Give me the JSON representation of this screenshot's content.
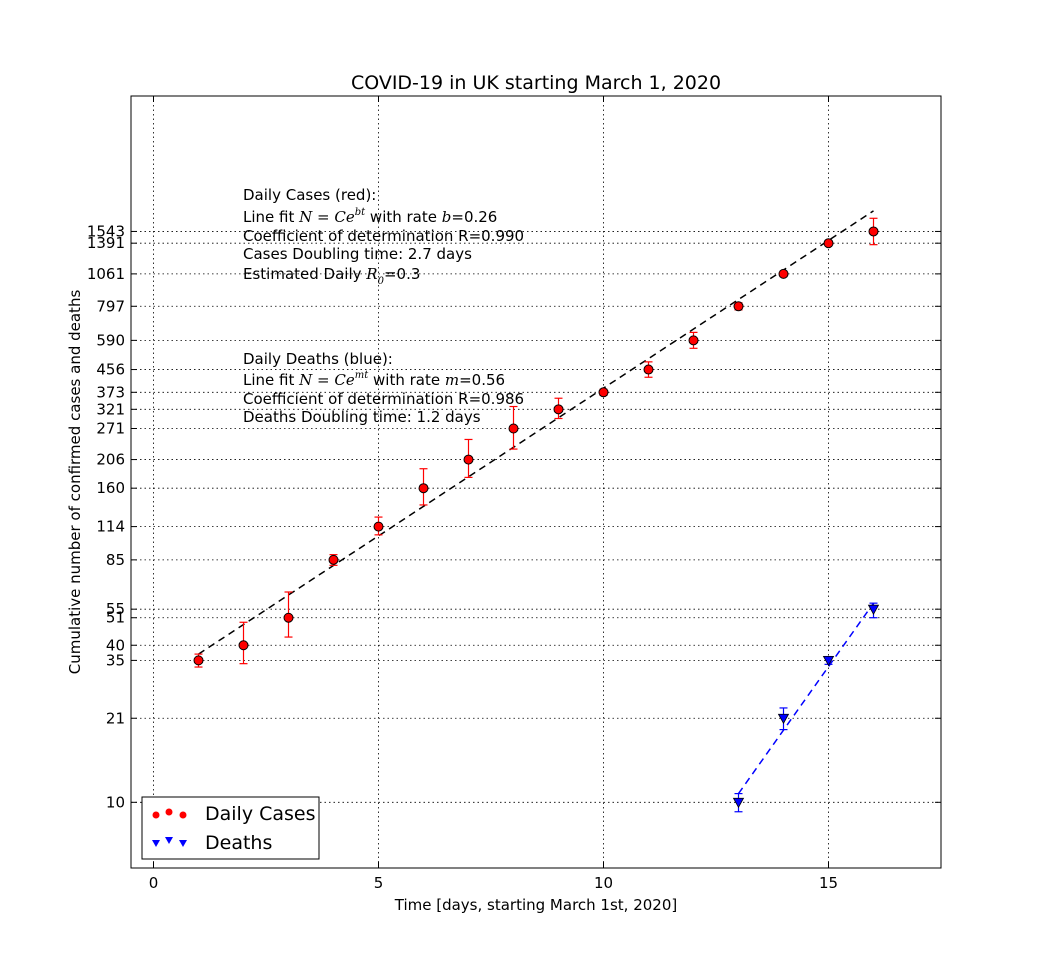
{
  "chart_data": {
    "type": "scatter",
    "title": "COVID-19 in UK starting March 1, 2020",
    "xlabel": "Time [days, starting March 1st, 2020]",
    "ylabel": "Cumulative number of confirmed cases and deaths",
    "xlim": [
      -0.5,
      17.5
    ],
    "ylim": [
      5.6,
      5100
    ],
    "y_scale": "log",
    "grid": true,
    "legend_position": "lower-left",
    "x_ticks": [
      0,
      5,
      10,
      15
    ],
    "y_ticks": [
      10,
      21,
      35,
      40,
      51,
      55,
      85,
      114,
      160,
      206,
      271,
      321,
      373,
      456,
      590,
      797,
      1061,
      1391,
      1543
    ],
    "series": [
      {
        "name": "Daily Cases",
        "marker": "circle",
        "color": "#ff0000",
        "x": [
          1,
          2,
          3,
          4,
          5,
          6,
          7,
          8,
          9,
          10,
          11,
          12,
          13,
          14,
          15,
          16
        ],
        "y": [
          35,
          40,
          51,
          85,
          114,
          160,
          206,
          271,
          321,
          373,
          456,
          590,
          797,
          1061,
          1391,
          1543
        ],
        "err_low": [
          2,
          6,
          8,
          4,
          8,
          22,
          30,
          45,
          25,
          10,
          30,
          40,
          25,
          25,
          20,
          170
        ],
        "err_high": [
          2,
          9,
          13,
          4,
          10,
          30,
          40,
          58,
          33,
          10,
          32,
          43,
          25,
          25,
          20,
          190
        ],
        "fit": {
          "x": [
            1,
            16
          ],
          "y": [
            37,
            1850
          ],
          "color": "#000000",
          "style": "dashed"
        }
      },
      {
        "name": "Deaths",
        "marker": "triangle-down",
        "color": "#0000ff",
        "x": [
          13,
          14,
          15,
          16
        ],
        "y": [
          10,
          21,
          35,
          55
        ],
        "err_low": [
          0.8,
          2,
          1.2,
          4
        ],
        "err_high": [
          0.8,
          2,
          1.2,
          3
        ],
        "fit": {
          "x": [
            13,
            16
          ],
          "y": [
            10.8,
            58
          ],
          "color": "#0000ff",
          "style": "dashed"
        }
      }
    ],
    "annotations": {
      "cases": {
        "heading": "Daily Cases (red):",
        "fit_prefix": "Line fit ",
        "fit_formula_base": "N = Ce",
        "fit_formula_exp": "bt",
        "fit_rate_prefix": " with rate ",
        "fit_rate_var": "b",
        "fit_rate_value": "=0.26",
        "r_line": "Coefficient of determination R=0.990",
        "doubling": "Cases Doubling time: 2.7 days",
        "r0_prefix": "Estimated Daily ",
        "r0_var": "R",
        "r0_sub": "0",
        "r0_value": "=0.3"
      },
      "deaths": {
        "heading": "Daily Deaths (blue):",
        "fit_prefix": "Line fit ",
        "fit_formula_base": "N = Ce",
        "fit_formula_exp": "mt",
        "fit_rate_prefix": " with rate ",
        "fit_rate_var": "m",
        "fit_rate_value": "=0.56",
        "r_line": "Coefficient of determination R=0.986",
        "doubling": "Deaths Doubling time: 1.2 days"
      }
    }
  }
}
